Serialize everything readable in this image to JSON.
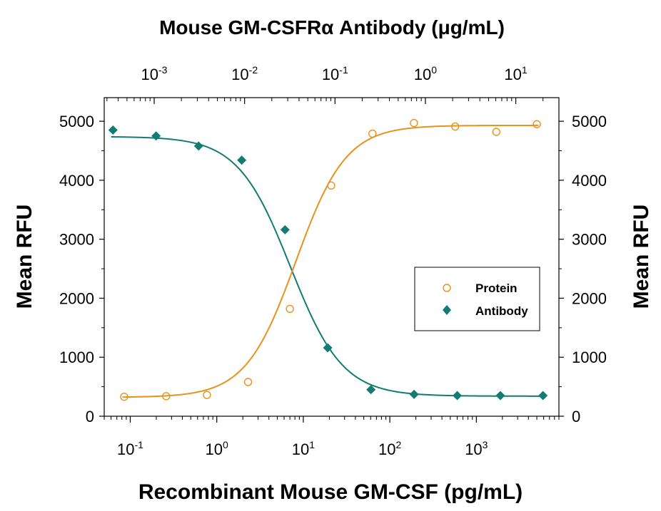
{
  "chart_data": {
    "type": "scatter",
    "title": "Mouse GM-CSFRα Antibody (μg/mL)",
    "xlabel": "Recombinant Mouse GM-CSF (pg/mL)",
    "ylabel": "Mean RFU",
    "y2label": "Mean RFU",
    "x_scale": "log",
    "xlim": [
      0.05,
      9000
    ],
    "x_ticks": [
      {
        "base": "10",
        "exp": "-1",
        "value": 0.1
      },
      {
        "base": "10",
        "exp": "0",
        "value": 1
      },
      {
        "base": "10",
        "exp": "1",
        "value": 10
      },
      {
        "base": "10",
        "exp": "2",
        "value": 100
      },
      {
        "base": "10",
        "exp": "3",
        "value": 1000
      }
    ],
    "x2_scale": "log",
    "x2lim": [
      0.00028,
      30
    ],
    "x2_ticks": [
      {
        "base": "10",
        "exp": "-3",
        "value": 0.001
      },
      {
        "base": "10",
        "exp": "-2",
        "value": 0.01
      },
      {
        "base": "10",
        "exp": "-1",
        "value": 0.1
      },
      {
        "base": "10",
        "exp": "0",
        "value": 1
      },
      {
        "base": "10",
        "exp": "1",
        "value": 10
      }
    ],
    "ylim": [
      0,
      5400
    ],
    "y_ticks": [
      "0",
      "1000",
      "2000",
      "3000",
      "4000",
      "5000"
    ],
    "y2_ticks": [
      "0",
      "1000",
      "2000",
      "3000",
      "4000",
      "5000"
    ],
    "grid": false,
    "legend_position": "right-middle",
    "series": [
      {
        "name": "Protein",
        "axis": "x",
        "marker": "open-circle",
        "color": "#e8921e",
        "x": [
          0.085,
          0.26,
          0.77,
          2.3,
          7,
          21,
          63,
          190,
          570,
          1700,
          5000
        ],
        "y": [
          330,
          340,
          360,
          580,
          1820,
          3910,
          4790,
          4970,
          4910,
          4820,
          4950
        ],
        "fit": {
          "bottom": 320,
          "top": 4930,
          "ec50": 8.2,
          "hill": 1.5
        }
      },
      {
        "name": "Antibody",
        "axis": "x2",
        "marker": "filled-diamond",
        "color": "#127c72",
        "x": [
          0.00035,
          0.00105,
          0.0031,
          0.0093,
          0.028,
          0.083,
          0.25,
          0.75,
          2.25,
          6.75,
          20
        ],
        "y": [
          4850,
          4750,
          4580,
          4340,
          3160,
          1160,
          450,
          370,
          350,
          350,
          350
        ],
        "fit": {
          "bottom": 340,
          "top": 4740,
          "ec50": 0.032,
          "hill": 1.5
        }
      }
    ]
  }
}
